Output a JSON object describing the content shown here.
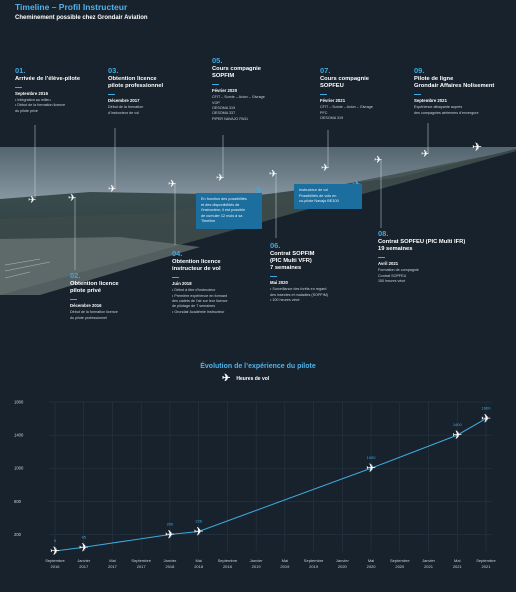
{
  "header": {
    "title": "Timeline – Profil Instructeur",
    "subtitle": "Cheminement possible chez Grondair Aviation"
  },
  "timeline": [
    {
      "num": "01.",
      "title": "Arrivée de l’élève-pilote",
      "date": "Septembre 2016",
      "desc": "• Intégration au milieu\n• Début de la formation licence\n  du pilote privé"
    },
    {
      "num": "02.",
      "title": "Obtention licence\npilote privé",
      "date": "Décembre 2016",
      "desc": "Début de la formation licence\ndu pilote professionnel"
    },
    {
      "num": "03.",
      "title": "Obtention licence\npilote professionnel",
      "date": "Décembre 2017",
      "desc": "Début de la formation\nd’instructeur de vol"
    },
    {
      "num": "04.",
      "title": "Obtention licence\ninstructeur de vol",
      "date": "Juin 2018",
      "desc": "• Début à titre d’instructeur\n• Première expérience en formant\n  des cadets de l’air sur leur licence\n  de pilotage de 7 semaines\n• Grondair Académie Instructeur"
    },
    {
      "num": "05.",
      "title": "Cours compagnie\nSOPFIM",
      "date": "Février 2020",
      "desc": "CFIT – Survie – Avion – Givrage\nVOP\nOESOMA 319\nOESOMA 337\nPIPER NAVAJO PA31"
    },
    {
      "num": "06.",
      "title": "Contrat SOPFIM\n(PIC Multi VFR)\n7 semaines",
      "date": "Mai 2020",
      "desc": "• Surveillance des forêts en regard\n  des insectes et maladies (SOPFIM)\n• 100 heures vécé"
    },
    {
      "num": "07.",
      "title": "Cours compagnie\nSOPFEU",
      "date": "Février 2021",
      "desc": "CFIT – Survie – Avion – Givrage\nPFC\nOESOMA 319"
    },
    {
      "num": "08.",
      "title": "Contrat SOPFEU (PIC Multi IFR)\n19 semaines",
      "date": "Avril 2021",
      "desc": "Formation de compagnie\nContrat SOPFEU\n150 heures vécé"
    },
    {
      "num": "09.",
      "title": "Pilote de ligne\nGrondair Affaires Nolisement",
      "date": "Septembre 2021",
      "desc": "Expérience attrayante auprès\ndes compagnies aériennes d’envergure"
    }
  ],
  "notes": {
    "a": "En fonction des possibilités\net des disponibilités de\nl’instructeur, il est possible\nde cumuler 12 mois à sa\nTimeline",
    "b": "Instructeur de vol\nPossibilités de vols en\nco-pilote Navajo BE100"
  },
  "chart_data": {
    "type": "line",
    "title": "Évolution de l’expérience du pilote",
    "legend": "Heures de vol",
    "categories": [
      "Septembre\n2016",
      "Janvier\n2017",
      "Mai\n2017",
      "Septembre\n2017",
      "Janvier\n2018",
      "Mai\n2018",
      "Septembre\n2018",
      "Janvier\n2019",
      "Mai\n2019",
      "Septembre\n2019",
      "Janvier\n2020",
      "Mai\n2020",
      "Septembre\n2020",
      "Janvier\n2021",
      "Mai\n2021",
      "Septembre\n2021"
    ],
    "yticks": [
      200,
      600,
      1000,
      1400,
      1800
    ],
    "ylim": [
      0,
      1800
    ],
    "points": [
      {
        "cat": 0,
        "value": 0,
        "label": "0"
      },
      {
        "cat": 1,
        "value": 45,
        "label": "45"
      },
      {
        "cat": 4,
        "value": 200,
        "label": "200"
      },
      {
        "cat": 5,
        "value": 236,
        "label": "236"
      },
      {
        "cat": 11,
        "value": 1000,
        "label": "1000"
      },
      {
        "cat": 14,
        "value": 1400,
        "label": "1400"
      },
      {
        "cat": 15,
        "value": 1600,
        "label": "1600"
      }
    ],
    "accent": "#3fa9e0"
  }
}
